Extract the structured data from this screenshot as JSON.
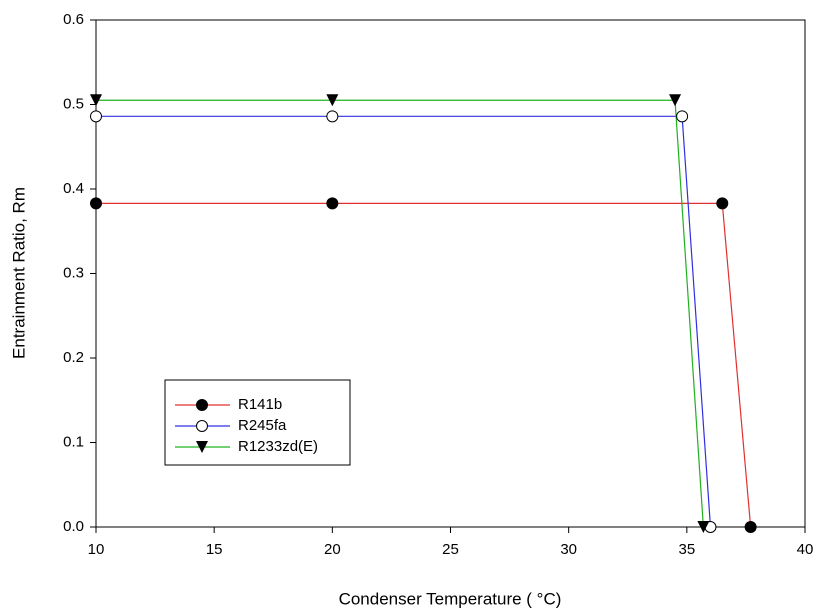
{
  "chart_data": {
    "type": "line",
    "xlabel": "Condenser Temperature ( °C)",
    "ylabel": "Entrainment Ratio, Rm",
    "xlim": [
      10,
      40
    ],
    "ylim": [
      0,
      0.6
    ],
    "xticks": [
      10,
      15,
      20,
      25,
      30,
      35,
      40
    ],
    "yticks": [
      {
        "value": 0,
        "label": "0.0"
      },
      0.1,
      0.2,
      0.3,
      0.4,
      0.5,
      0.6
    ],
    "legend": "lower left",
    "series": [
      {
        "name": "R141b",
        "color": "#e03030",
        "marker": "circle-filled",
        "x": [
          10,
          20,
          36.5,
          37.7
        ],
        "values": [
          0.383,
          0.383,
          0.383,
          0
        ]
      },
      {
        "name": "R245fa",
        "color": "#3030e0",
        "marker": "circle-open",
        "x": [
          10,
          20,
          34.8,
          36.0
        ],
        "values": [
          0.486,
          0.486,
          0.486,
          0
        ]
      },
      {
        "name": "R1233zd(E)",
        "color": "#20b020",
        "marker": "triangle-down",
        "x": [
          10,
          20,
          34.5,
          35.7
        ],
        "values": [
          0.505,
          0.505,
          0.505,
          0
        ]
      }
    ]
  }
}
